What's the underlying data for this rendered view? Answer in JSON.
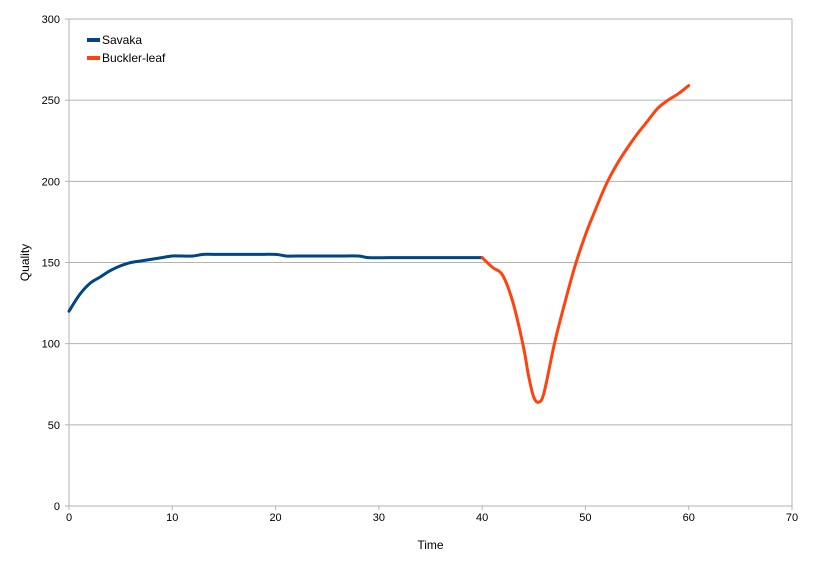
{
  "chart_data": {
    "type": "line",
    "title": "",
    "xlabel": "Time",
    "ylabel": "Quality",
    "xlim": [
      0,
      70
    ],
    "ylim": [
      0,
      300
    ],
    "x_ticks": [
      0,
      10,
      20,
      30,
      40,
      50,
      60,
      70
    ],
    "y_ticks": [
      0,
      50,
      100,
      150,
      200,
      250,
      300
    ],
    "grid": "horizontal",
    "legend_position": "top-left",
    "series": [
      {
        "name": "Savaka",
        "color": "#004586",
        "points": [
          [
            0,
            120
          ],
          [
            1,
            130
          ],
          [
            2,
            137
          ],
          [
            3,
            141
          ],
          [
            4,
            145
          ],
          [
            5,
            148
          ],
          [
            6,
            150
          ],
          [
            7,
            151
          ],
          [
            8,
            152
          ],
          [
            9,
            153
          ],
          [
            10,
            154
          ],
          [
            11,
            154
          ],
          [
            12,
            154
          ],
          [
            13,
            155
          ],
          [
            14,
            155
          ],
          [
            16,
            155
          ],
          [
            18,
            155
          ],
          [
            20,
            155
          ],
          [
            21,
            154
          ],
          [
            22,
            154
          ],
          [
            24,
            154
          ],
          [
            26,
            154
          ],
          [
            28,
            154
          ],
          [
            29,
            153
          ],
          [
            31,
            153
          ],
          [
            33,
            153
          ],
          [
            35,
            153
          ],
          [
            37,
            153
          ],
          [
            40,
            153
          ]
        ]
      },
      {
        "name": "Buckler-leaf",
        "color": "#ff420e",
        "points": [
          [
            40,
            153
          ],
          [
            41,
            147
          ],
          [
            42,
            142
          ],
          [
            43,
            125
          ],
          [
            44,
            98
          ],
          [
            44.5,
            80
          ],
          [
            45,
            67
          ],
          [
            45.5,
            64
          ],
          [
            46,
            70
          ],
          [
            47,
            100
          ],
          [
            48,
            125
          ],
          [
            49,
            148
          ],
          [
            50,
            167
          ],
          [
            51,
            183
          ],
          [
            52,
            198
          ],
          [
            53,
            210
          ],
          [
            54,
            220
          ],
          [
            55,
            229
          ],
          [
            56,
            237
          ],
          [
            57,
            245
          ],
          [
            58,
            250
          ],
          [
            59,
            254
          ],
          [
            60,
            259
          ]
        ]
      }
    ]
  }
}
